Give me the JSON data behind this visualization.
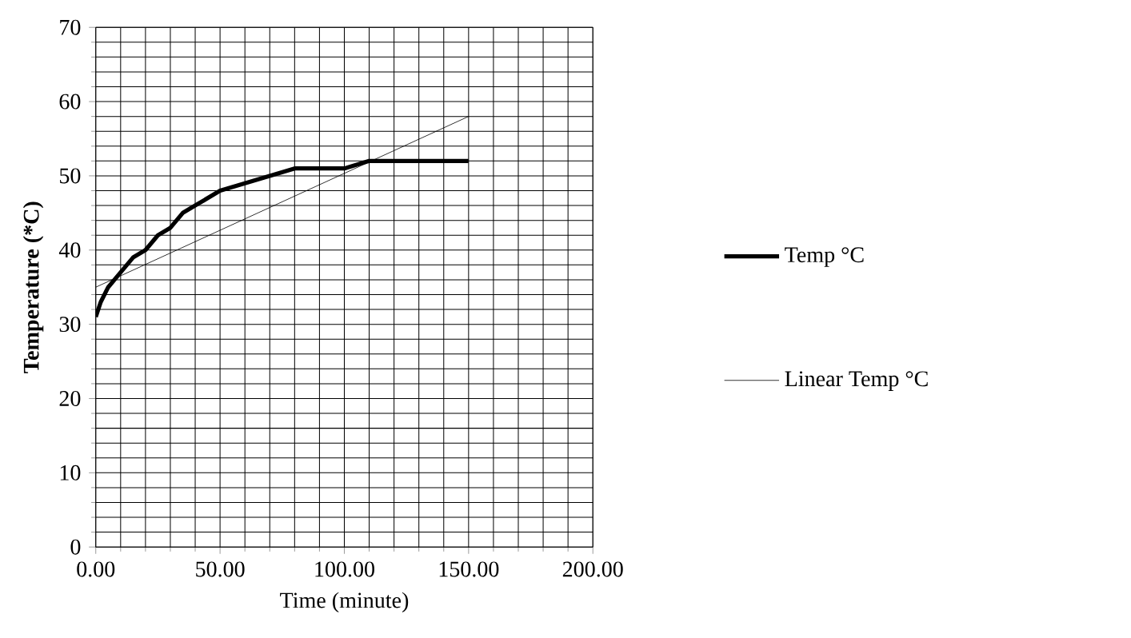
{
  "chart_data": {
    "type": "line",
    "xlabel": "Time (minute)",
    "ylabel": "Temperature (*C)",
    "xlim": [
      0,
      200
    ],
    "ylim": [
      0,
      70
    ],
    "xticks": [
      {
        "value": 0,
        "label": "0.00"
      },
      {
        "value": 50,
        "label": "50.00"
      },
      {
        "value": 100,
        "label": "100.00"
      },
      {
        "value": 150,
        "label": "150.00"
      },
      {
        "value": 200,
        "label": "200.00"
      }
    ],
    "yticks": [
      0,
      10,
      20,
      30,
      40,
      50,
      60,
      70
    ],
    "grid": true,
    "legend": "right",
    "marker": "none",
    "series": [
      {
        "name": "Temp °C",
        "color": "#000000",
        "x": [
          0,
          2,
          5,
          10,
          15,
          20,
          25,
          30,
          35,
          40,
          50,
          60,
          70,
          80,
          90,
          100,
          110,
          120,
          150
        ],
        "values": [
          31,
          33,
          35,
          37,
          39,
          40,
          42,
          43,
          45,
          46,
          48,
          49,
          50,
          51,
          51,
          51,
          52,
          52,
          52
        ]
      },
      {
        "name": "Linear Temp °C",
        "color": "#000000",
        "x": [
          0,
          150
        ],
        "values": [
          35,
          58
        ]
      }
    ]
  }
}
